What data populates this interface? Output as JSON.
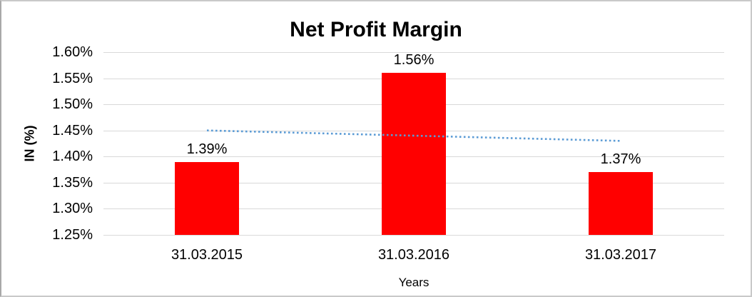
{
  "chart_data": {
    "type": "bar",
    "title": "Net Profit Margin",
    "xlabel": "Years",
    "ylabel": "IN (%)",
    "categories": [
      "31.03.2015",
      "31.03.2016",
      "31.03.2017"
    ],
    "values": [
      1.39,
      1.56,
      1.37
    ],
    "data_labels": [
      "1.39%",
      "1.56%",
      "1.37%"
    ],
    "yticks": [
      {
        "value": 1.6,
        "label": "1.60%"
      },
      {
        "value": 1.55,
        "label": "1.55%"
      },
      {
        "value": 1.5,
        "label": "1.50%"
      },
      {
        "value": 1.45,
        "label": "1.45%"
      },
      {
        "value": 1.4,
        "label": "1.40%"
      },
      {
        "value": 1.35,
        "label": "1.35%"
      },
      {
        "value": 1.3,
        "label": "1.30%"
      },
      {
        "value": 1.25,
        "label": "1.25%"
      }
    ],
    "ylim": [
      1.25,
      1.6
    ],
    "grid": true,
    "legend": "none",
    "trendline": {
      "type": "linear",
      "style": "dotted",
      "start_value": 1.45,
      "end_value": 1.43
    },
    "colors": {
      "bar": "#FF0000",
      "trendline": "#5B9BD5",
      "gridline": "#D9D9D9",
      "text": "#000000",
      "background": "#FFFFFF"
    }
  }
}
